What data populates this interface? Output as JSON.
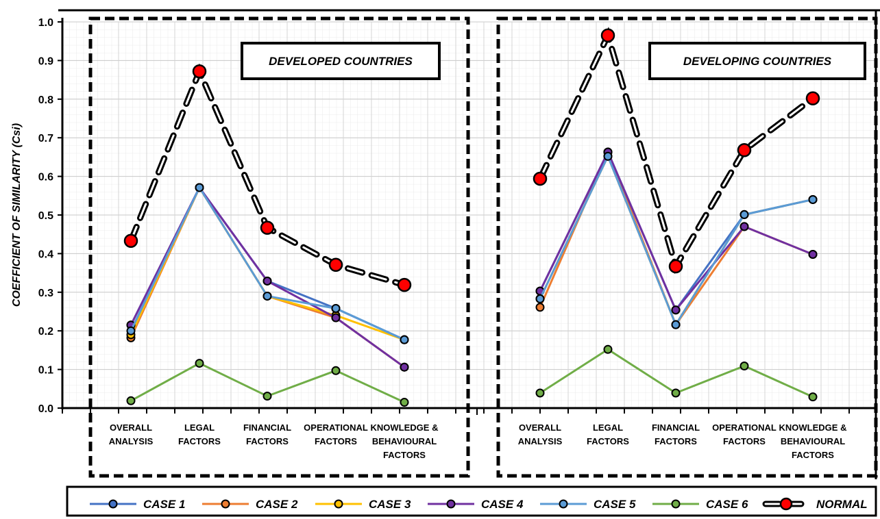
{
  "chart_data": {
    "type": "line",
    "ylabel": "COEFFICIENT OF SIMILARITY (Csi)",
    "ylim": [
      0.0,
      1.0
    ],
    "yticks": [
      "0.0",
      "0.1",
      "0.2",
      "0.3",
      "0.4",
      "0.5",
      "0.6",
      "0.7",
      "0.8",
      "0.9",
      "1.0"
    ],
    "grid": true,
    "legend_position": "bottom",
    "colors": {
      "CASE 1": "#4472c4",
      "CASE 2": "#ed7d31",
      "CASE 3": "#ffc000",
      "CASE 4": "#7030a0",
      "CASE 5": "#5b9bd5",
      "CASE 6": "#70ad47",
      "NORMAL": "#000000",
      "normal_marker": "#ff0000"
    },
    "panels": [
      {
        "title": "DEVELOPED COUNTRIES",
        "categories": [
          [
            "OVERALL",
            "ANALYSIS"
          ],
          [
            "LEGAL",
            "FACTORS"
          ],
          [
            "FINANCIAL",
            "FACTORS"
          ],
          [
            "OPERATIONAL",
            "FACTORS"
          ],
          [
            "KNOWLEDGE &",
            "BEHAVIOURAL",
            "FACTORS"
          ]
        ],
        "series": [
          {
            "name": "CASE 1",
            "values": [
              0.215,
              0.571,
              0.329,
              0.258,
              0.177
            ]
          },
          {
            "name": "CASE 2",
            "values": [
              0.182,
              0.571,
              0.29,
              0.234,
              0.106
            ]
          },
          {
            "name": "CASE 3",
            "values": [
              0.19,
              0.571,
              0.29,
              0.24,
              0.177
            ]
          },
          {
            "name": "CASE 4",
            "values": [
              0.215,
              0.571,
              0.329,
              0.234,
              0.106
            ]
          },
          {
            "name": "CASE 5",
            "values": [
              0.2,
              0.571,
              0.29,
              0.258,
              0.177
            ]
          },
          {
            "name": "CASE 6",
            "values": [
              0.019,
              0.116,
              0.031,
              0.097,
              0.015
            ]
          },
          {
            "name": "NORMAL",
            "values": [
              0.433,
              0.872,
              0.467,
              0.371,
              0.319
            ]
          }
        ]
      },
      {
        "title": "DEVELOPING COUNTRIES",
        "categories": [
          [
            "OVERALL",
            "ANALYSIS"
          ],
          [
            "LEGAL",
            "FACTORS"
          ],
          [
            "FINANCIAL",
            "FACTORS"
          ],
          [
            "OPERATIONAL",
            "FACTORS"
          ],
          [
            "KNOWLEDGE &",
            "BEHAVIOURAL",
            "FACTORS"
          ]
        ],
        "series": [
          {
            "name": "CASE 1",
            "values": [
              0.303,
              0.663,
              0.254,
              0.501,
              0.54
            ]
          },
          {
            "name": "CASE 2",
            "values": [
              0.261,
              0.663,
              0.216,
              0.47,
              0.398
            ]
          },
          {
            "name": "CASE 3",
            "values": [
              0.283,
              0.652,
              0.216,
              0.501,
              0.54
            ]
          },
          {
            "name": "CASE 4",
            "values": [
              0.303,
              0.663,
              0.254,
              0.47,
              0.398
            ]
          },
          {
            "name": "CASE 5",
            "values": [
              0.283,
              0.652,
              0.216,
              0.501,
              0.54
            ]
          },
          {
            "name": "CASE 6",
            "values": [
              0.039,
              0.152,
              0.039,
              0.109,
              0.029
            ]
          },
          {
            "name": "NORMAL",
            "values": [
              0.594,
              0.965,
              0.367,
              0.668,
              0.802
            ]
          }
        ]
      }
    ],
    "legend": [
      "CASE 1",
      "CASE 2",
      "CASE 3",
      "CASE 4",
      "CASE 5",
      "CASE 6",
      "NORMAL"
    ]
  }
}
